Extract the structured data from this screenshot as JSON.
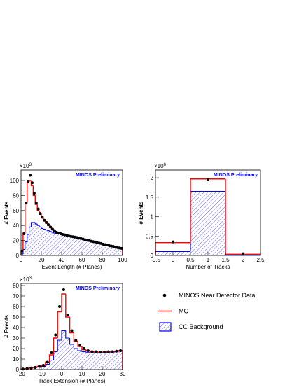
{
  "chart_data": [
    {
      "type": "histogram",
      "x_label": "Event Length (# Planes)",
      "y_label": "# Events",
      "y_multiplier": {
        "base": "×10",
        "exponent": "3"
      },
      "annotation": "MINOS Preliminary",
      "xlim": [
        0,
        100
      ],
      "ylim": [
        0,
        114
      ],
      "xticks": [
        0,
        20,
        40,
        60,
        80,
        100
      ],
      "yticks": [
        0,
        20,
        40,
        60,
        80,
        100
      ],
      "bins": [
        0,
        2,
        4,
        6,
        8,
        10,
        12,
        14,
        16,
        18,
        20,
        22,
        24,
        26,
        28,
        30,
        32,
        34,
        36,
        38,
        40,
        42,
        44,
        46,
        48,
        50,
        52,
        54,
        56,
        58,
        60,
        62,
        64,
        66,
        68,
        70,
        72,
        74,
        76,
        78,
        80,
        82,
        84,
        86,
        88,
        90,
        92,
        94,
        96,
        98,
        100
      ],
      "series": [
        {
          "name": "MINOS Near Detector Data",
          "color": "#000000",
          "style": "points",
          "values": [
            6,
            29,
            70,
            99,
            107,
            97,
            83,
            70,
            62,
            56,
            51,
            47,
            44,
            41,
            38,
            35,
            33,
            31,
            30,
            29,
            28,
            27.5,
            27,
            26,
            25.5,
            25,
            24.5,
            24,
            23,
            22.5,
            22,
            21,
            20.5,
            20,
            19,
            18.5,
            18,
            17,
            16.5,
            16,
            15,
            14.5,
            14,
            13,
            12.5,
            12,
            11,
            10.5,
            10,
            9.5
          ]
        },
        {
          "name": "MC",
          "color": "#ff0000",
          "style": "step",
          "values": [
            5,
            30,
            70,
            98,
            100,
            93,
            80,
            68,
            60,
            55,
            50,
            46,
            43,
            40,
            37,
            35,
            33,
            31,
            30,
            29,
            28,
            27.5,
            27,
            26,
            25.5,
            25,
            24.5,
            24,
            23,
            22.5,
            22,
            21,
            20.5,
            20,
            19,
            18.5,
            18,
            17,
            16.5,
            16,
            15,
            14.5,
            14,
            13,
            12.5,
            12,
            11,
            10.5,
            10,
            9.5
          ]
        },
        {
          "name": "CC Background",
          "color": "#0000ff",
          "style": "hatched",
          "values": [
            2,
            8,
            18,
            28,
            38,
            44,
            44,
            42,
            40,
            38,
            36,
            35,
            34,
            33,
            32,
            31,
            30,
            29.5,
            29,
            28.5,
            27.5,
            27,
            26.5,
            25.5,
            25,
            24.5,
            24,
            23.5,
            22.5,
            22,
            21.5,
            20.5,
            20,
            19.5,
            18.5,
            18,
            17.5,
            16.5,
            16,
            15.5,
            14.5,
            14,
            13.5,
            12.5,
            12,
            11.5,
            10.5,
            10,
            9.5,
            9
          ]
        }
      ]
    },
    {
      "type": "histogram",
      "x_label": "Number of Tracks",
      "y_label": "# Events",
      "y_multiplier": {
        "base": "×10",
        "exponent": "6"
      },
      "annotation": "MINOS Preliminary",
      "xlim": [
        -0.5,
        2.5
      ],
      "ylim": [
        0,
        2.2
      ],
      "xticks": [
        -0.5,
        0,
        0.5,
        1,
        1.5,
        2,
        2.5
      ],
      "yticks": [
        0,
        0.5,
        1,
        1.5,
        2
      ],
      "bins": [
        -0.5,
        0.5,
        1.5,
        2.5
      ],
      "series": [
        {
          "name": "MINOS Near Detector Data",
          "color": "#000000",
          "style": "points",
          "values": [
            0.35,
            1.95,
            0.03
          ]
        },
        {
          "name": "MC",
          "color": "#ff0000",
          "style": "step",
          "values": [
            0.33,
            1.97,
            0.03
          ]
        },
        {
          "name": "CC Background",
          "color": "#0000ff",
          "style": "hatched",
          "values": [
            0.1,
            1.65,
            0.02
          ]
        }
      ]
    },
    {
      "type": "histogram",
      "x_label": "Track Extension (# Planes)",
      "y_label": "# Events",
      "y_multiplier": {
        "base": "×10",
        "exponent": "3"
      },
      "annotation": "MINOS Preliminary",
      "xlim": [
        -20,
        30
      ],
      "ylim": [
        0,
        82
      ],
      "xticks": [
        -20,
        -10,
        0,
        10,
        20,
        30
      ],
      "yticks": [
        0,
        10,
        20,
        30,
        40,
        50,
        60,
        70,
        80
      ],
      "bins": [
        -20,
        -18,
        -16,
        -14,
        -12,
        -10,
        -8,
        -6,
        -4,
        -2,
        0,
        2,
        4,
        6,
        8,
        10,
        12,
        14,
        16,
        18,
        20,
        22,
        24,
        26,
        28,
        30
      ],
      "series": [
        {
          "name": "MINOS Near Detector Data",
          "color": "#000000",
          "style": "points",
          "values": [
            0.5,
            1,
            1.5,
            2,
            3,
            4,
            7,
            16,
            33,
            60,
            76,
            52,
            37,
            28,
            23,
            20,
            18,
            17,
            17,
            16.5,
            16.5,
            17,
            17,
            17.5,
            18
          ]
        },
        {
          "name": "MC",
          "color": "#ff0000",
          "style": "step",
          "values": [
            0.5,
            1,
            1.5,
            2,
            3,
            4,
            7,
            14,
            30,
            55,
            72,
            50,
            35,
            27,
            22,
            19,
            18,
            17,
            17,
            16.5,
            16.5,
            17,
            17,
            17.5,
            18
          ]
        },
        {
          "name": "CC Background",
          "color": "#0000ff",
          "style": "hatched",
          "values": [
            0.5,
            1,
            1.5,
            2,
            2.5,
            3,
            5,
            9,
            17,
            28,
            37,
            30,
            24,
            20,
            18,
            17,
            16.5,
            16.5,
            16.5,
            16,
            16,
            16.5,
            16.5,
            17,
            17.5
          ]
        }
      ]
    }
  ]
}
